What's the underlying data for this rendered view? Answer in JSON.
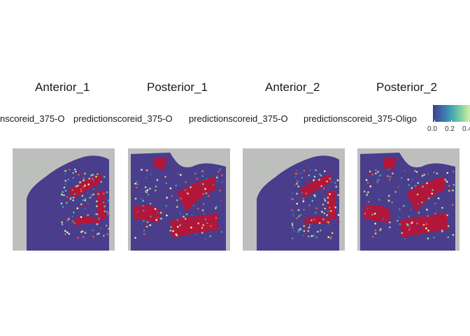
{
  "panels": [
    {
      "title": "Anterior_1",
      "subtitle": "nscoreid_375-O",
      "shape": "anterior"
    },
    {
      "title": "Posterior_1",
      "subtitle": "predictionscoreid_375-O",
      "shape": "posterior"
    },
    {
      "title": "Anterior_2",
      "subtitle": "predictionscoreid_375-O",
      "shape": "anterior"
    },
    {
      "title": "Posterior_2",
      "subtitle": "predictionscoreid_375-Oligo",
      "shape": "posterior"
    }
  ],
  "legend": {
    "ticks": [
      "0.0",
      "0.2",
      "0.4"
    ],
    "colors": [
      "#3f3d8f",
      "#3c6aa8",
      "#3f9bb0",
      "#6cc4a4",
      "#b6e3a0",
      "#f3f7b8",
      "#fdbb6c",
      "#e8593c",
      "#b1173b"
    ]
  },
  "colors": {
    "background_tissue": "#bdbfbd",
    "tissue_base": "#4a3d8c",
    "high_signal": "#b1173b"
  }
}
